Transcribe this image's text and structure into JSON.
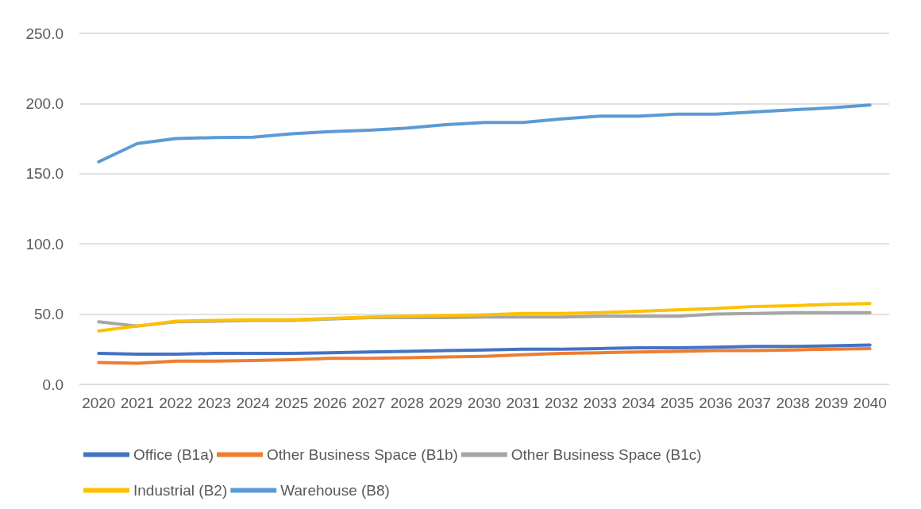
{
  "chart_data": {
    "type": "line",
    "categories": [
      "2020",
      "2021",
      "2022",
      "2023",
      "2024",
      "2025",
      "2026",
      "2027",
      "2028",
      "2029",
      "2030",
      "2031",
      "2032",
      "2033",
      "2034",
      "2035",
      "2036",
      "2037",
      "2038",
      "2039",
      "2040"
    ],
    "series": [
      {
        "name": "Office (B1a)",
        "color": "#4472c4",
        "values": [
          22,
          21.5,
          21.5,
          22,
          22,
          22,
          22.5,
          23,
          23.5,
          24,
          24.5,
          25,
          25,
          25.5,
          26,
          26,
          26.5,
          27,
          27,
          27.5,
          28
        ]
      },
      {
        "name": "Other Business Space (B1b)",
        "color": "#ed7d31",
        "values": [
          15.5,
          15,
          16.5,
          16.5,
          17,
          17.5,
          18.5,
          18.5,
          19,
          19.5,
          20,
          21,
          22,
          22.5,
          23,
          23.5,
          24,
          24,
          24.5,
          25,
          25.5
        ]
      },
      {
        "name": "Other Business Space (B1c)",
        "color": "#a5a5a5",
        "values": [
          44.5,
          41.5,
          44.5,
          45,
          45.5,
          45.5,
          46.5,
          47.5,
          47.5,
          47.5,
          48,
          48,
          48,
          48.5,
          48.5,
          48.5,
          50,
          50.5,
          51,
          51,
          51
        ]
      },
      {
        "name": "Industrial (B2)",
        "color": "#ffc000",
        "values": [
          38,
          41.5,
          45,
          45.5,
          46,
          46,
          47,
          48,
          48.5,
          49,
          49.5,
          50.5,
          50.5,
          51,
          52,
          53,
          54,
          55.5,
          56,
          57,
          57.5
        ]
      },
      {
        "name": "Warehouse (B8)",
        "color": "#5b9bd5",
        "values": [
          158.5,
          171.5,
          175,
          175.8,
          176,
          178.5,
          180,
          181,
          182.5,
          185,
          186.5,
          186.5,
          189,
          191,
          191,
          192.5,
          192.5,
          194,
          195.5,
          197,
          199
        ]
      }
    ],
    "ylim": [
      0,
      250
    ],
    "yticks": [
      {
        "value": 0,
        "label": "0.0"
      },
      {
        "value": 50,
        "label": "50.0"
      },
      {
        "value": 100,
        "label": "100.0"
      },
      {
        "value": 150,
        "label": "150.0"
      },
      {
        "value": 200,
        "label": "200.0"
      },
      {
        "value": 250,
        "label": "250.0"
      }
    ],
    "grid": "y",
    "legend": "bottom",
    "marker": "none",
    "line_style": "solid"
  }
}
